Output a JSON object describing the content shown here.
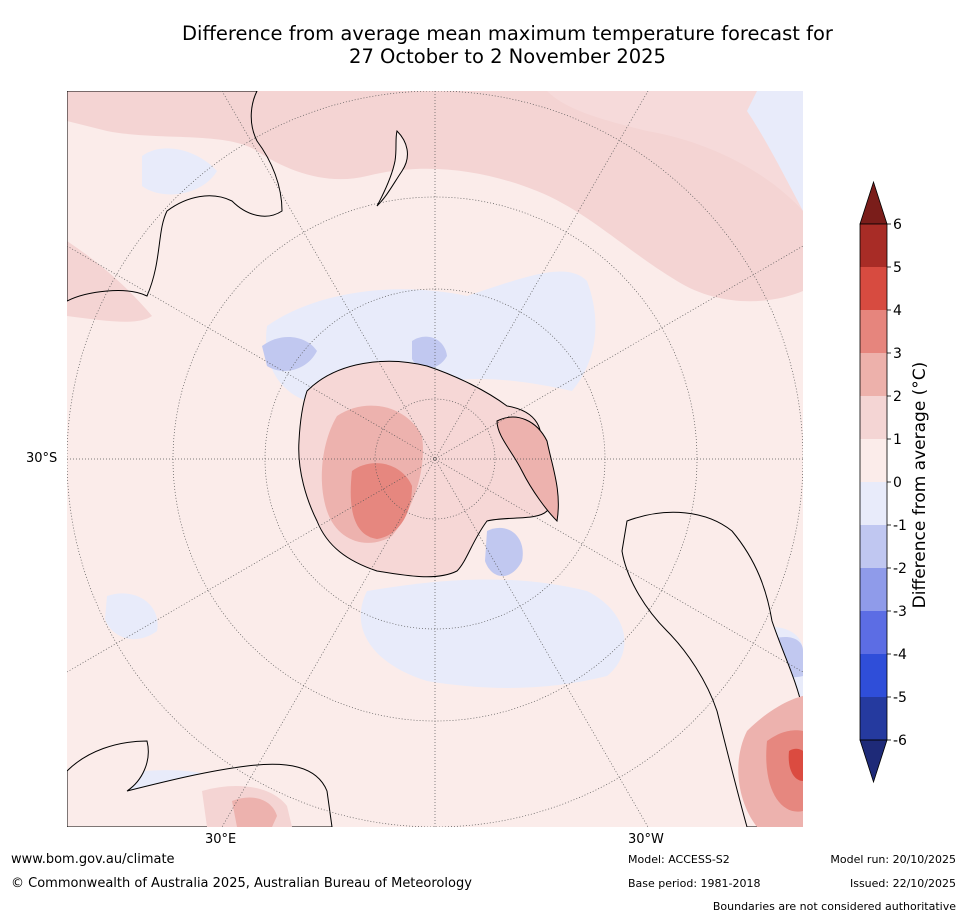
{
  "title_line1": "Difference from average mean maximum temperature forecast for",
  "title_line2": "27 October to 2 November 2025",
  "map": {
    "lat_label": "30°S",
    "lon_label_east": "30°E",
    "lon_label_west": "30°W",
    "colors": {
      "ocean_0_1": "#fbecea",
      "land_ice": "#f6d7d6",
      "c1_2": "#f4d4d3",
      "c2_3": "#edb2ae",
      "c3_4": "#e6877f",
      "cm1_0": "#e8ebfa",
      "cm2_m1": "#c1c8f0",
      "c4_5": "#db4b40"
    }
  },
  "colorbar": {
    "title": "Difference from average (°C)",
    "ticks": [
      "6",
      "5",
      "4",
      "3",
      "2",
      "1",
      "0",
      "-1",
      "-2",
      "-3",
      "-4",
      "-5",
      "-6"
    ],
    "colors": [
      "#a82c26",
      "#d74b40",
      "#e6857d",
      "#edb1ab",
      "#f4d5d4",
      "#fbecea",
      "#e8ebfa",
      "#c0c7f1",
      "#8f9bea",
      "#5c6de4",
      "#2f4ed9",
      "#253a9f"
    ],
    "over_color": "#7a1d1a",
    "under_color": "#1e2a78"
  },
  "footer": {
    "website": "www.bom.gov.au/climate",
    "copyright": "© Commonwealth of Australia 2025, Australian Bureau of Meteorology",
    "model": "Model: ACCESS-S2",
    "base_period": "Base period: 1981-2018",
    "model_run": "Model run: 20/10/2025",
    "issued": "Issued: 22/10/2025",
    "disclaimer": "Boundaries are not considered authoritative"
  }
}
